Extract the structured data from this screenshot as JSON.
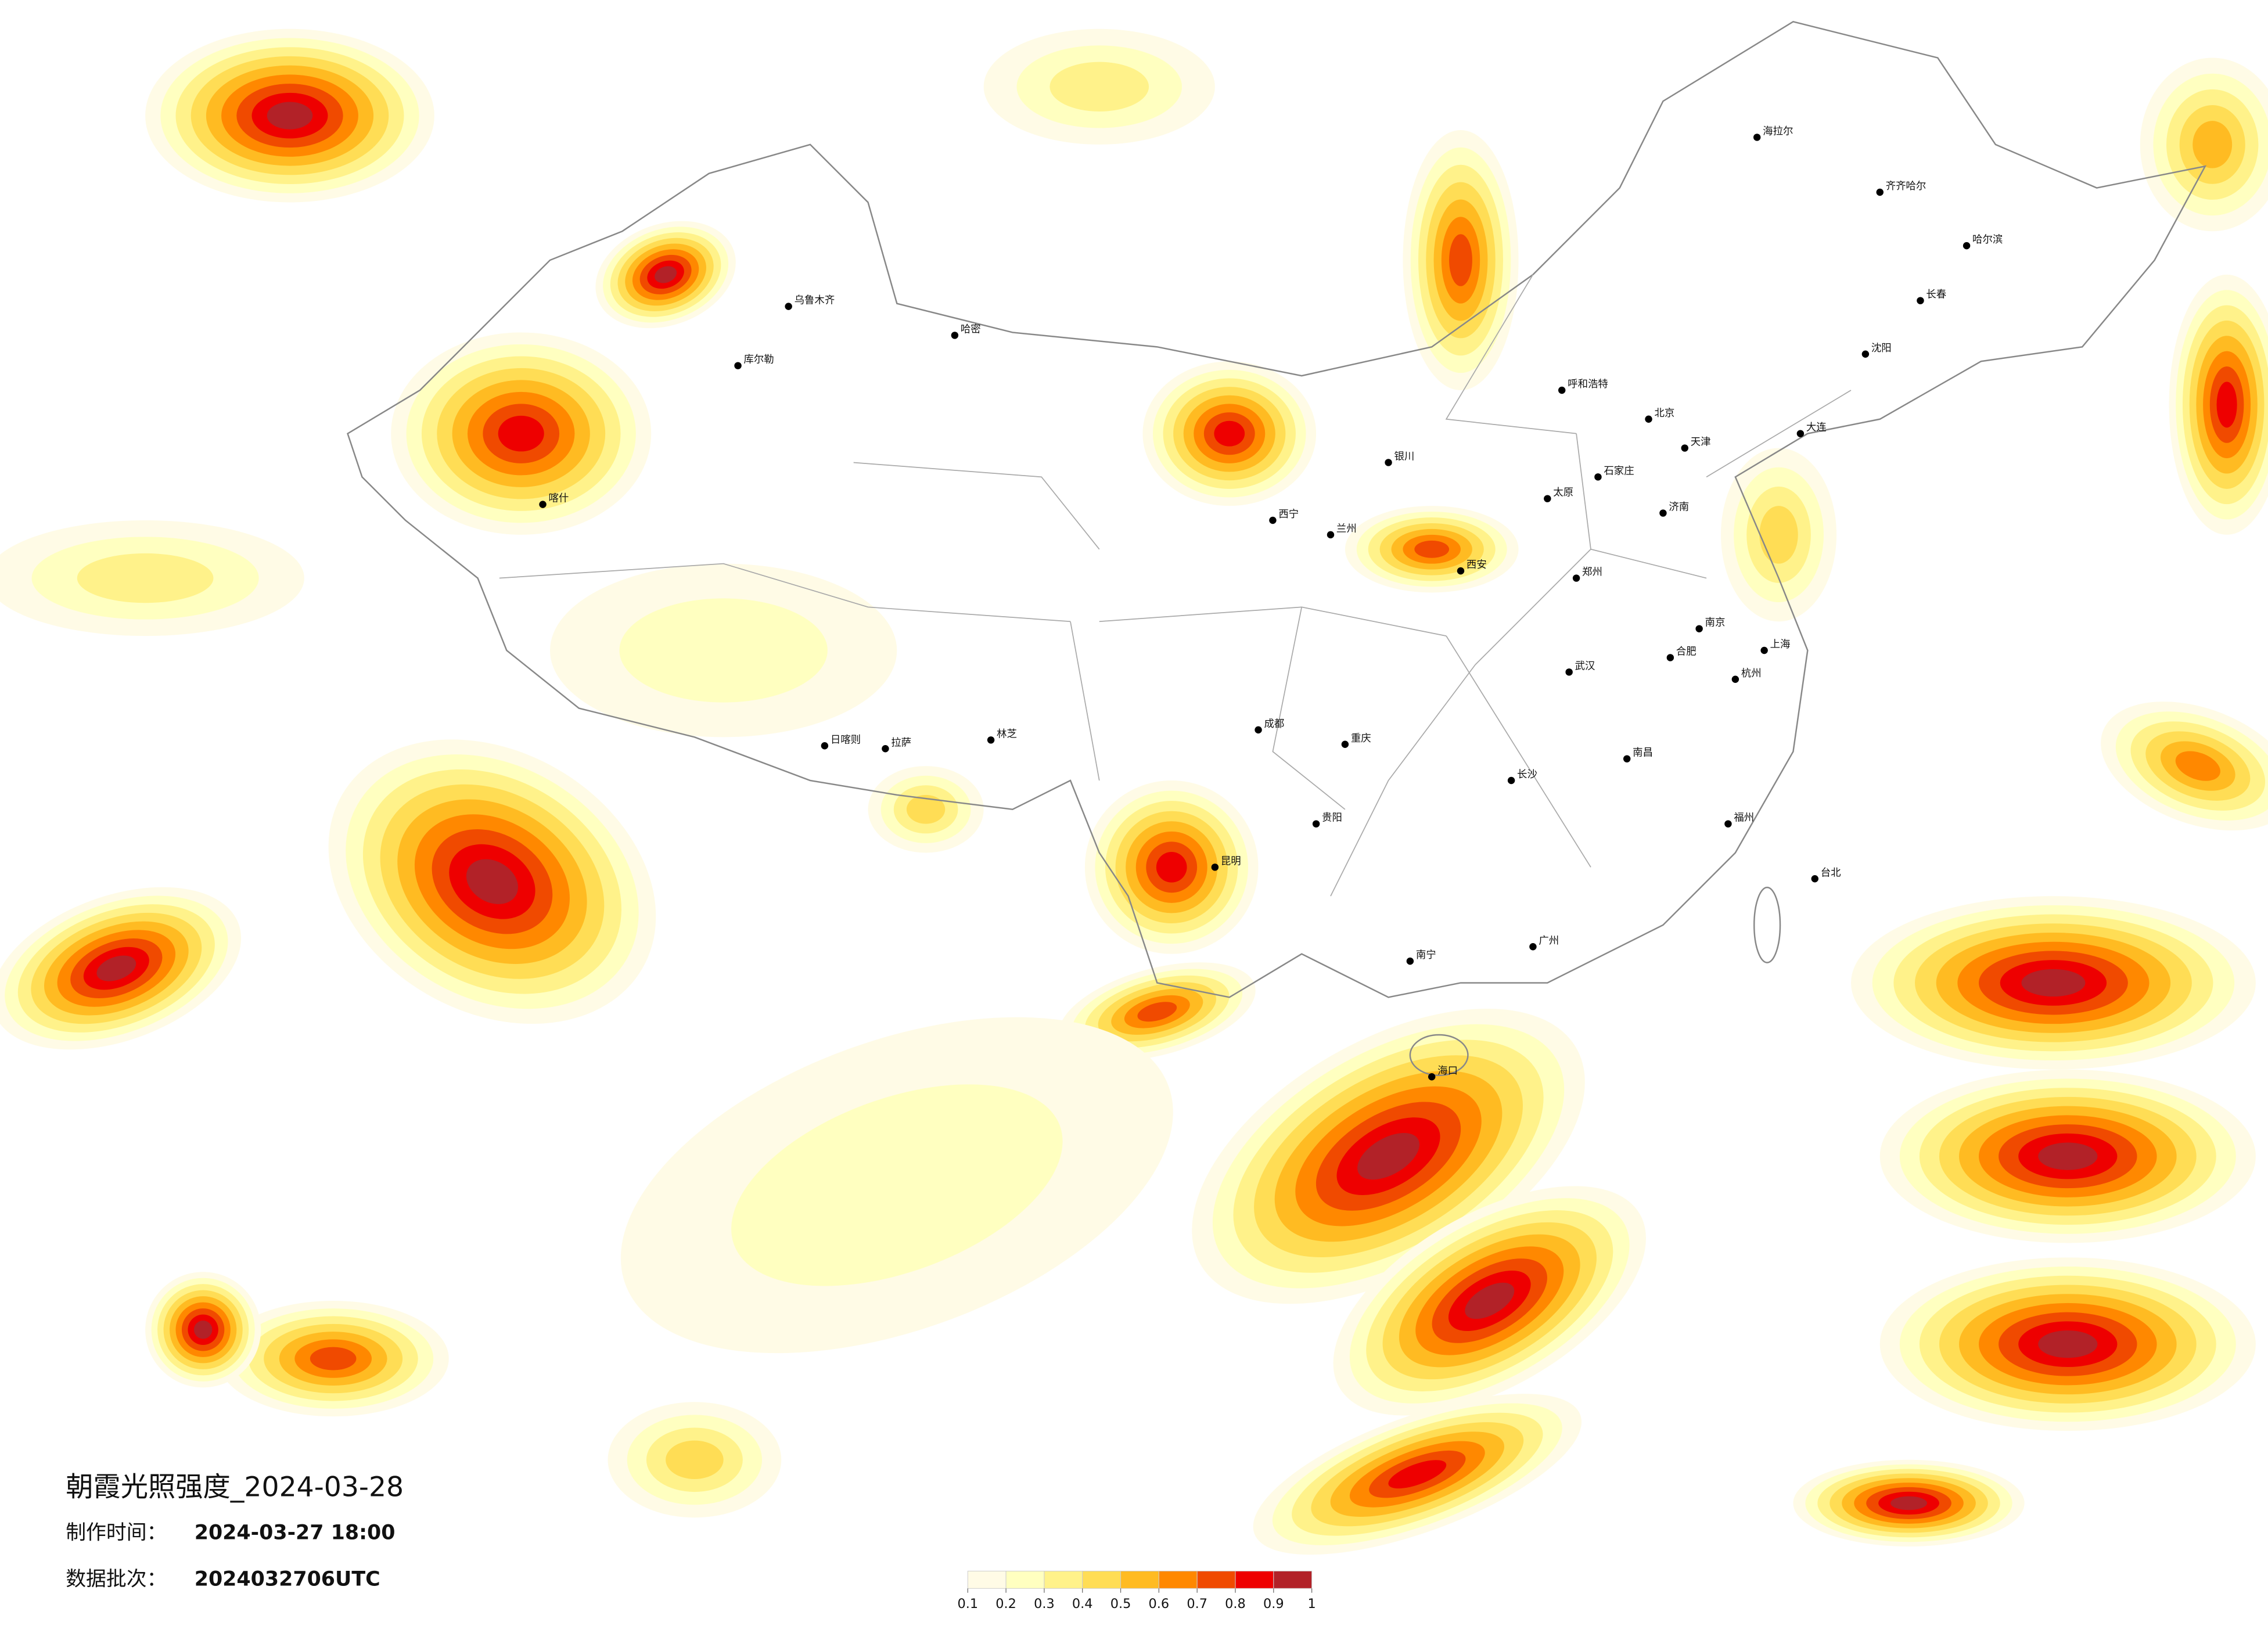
{
  "title": "朝霞光照强度_2024-03-28",
  "made_time_label": "制作时间：",
  "made_time": "2024-03-27 18:00",
  "batch_label": "数据批次：",
  "batch": "2024032706UTC",
  "legend": {
    "ticks": [
      0.1,
      0.2,
      0.3,
      0.4,
      0.5,
      0.6,
      0.7,
      0.8,
      0.9,
      1
    ],
    "colors": [
      "#fffbe6",
      "#ffffc0",
      "#fff28a",
      "#ffdd55",
      "#ffbb22",
      "#ff8800",
      "#f04a00",
      "#ee0000",
      "#b22228"
    ]
  },
  "cities": [
    "海拉尔",
    "齐齐哈尔",
    "哈尔滨",
    "长春",
    "沈阳",
    "北京",
    "天津",
    "呼和浩特",
    "石家庄",
    "太原",
    "济南",
    "郑州",
    "西安",
    "兰州",
    "西宁",
    "银川",
    "乌鲁木齐",
    "哈密",
    "库尔勒",
    "喀什",
    "拉萨",
    "日喀则",
    "林芝",
    "成都",
    "重庆",
    "贵阳",
    "昆明",
    "南宁",
    "广州",
    "长沙",
    "武汉",
    "南京",
    "上海",
    "杭州",
    "福州",
    "台北",
    "海口",
    "南昌",
    "合肥",
    "大连"
  ]
}
